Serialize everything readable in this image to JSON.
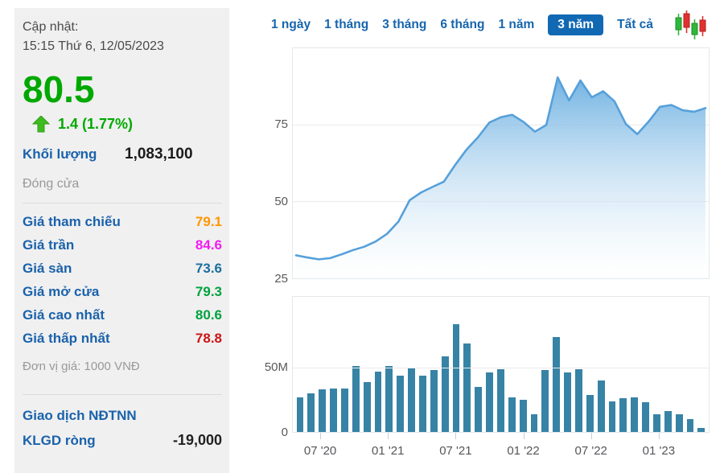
{
  "left_panel": {
    "updated_label": "Cập nhật:",
    "updated_time": "15:15 Thứ 6, 12/05/2023",
    "last_price": "80.5",
    "change_text": "1.4 (1.77%)",
    "change_direction": "up",
    "volume_label": "Khối lượng",
    "volume_value": "1,083,100",
    "close_label": "Đóng cửa",
    "price_rows": [
      {
        "label": "Giá tham chiếu",
        "value": "79.1",
        "color": "#ff9500"
      },
      {
        "label": "Giá trần",
        "value": "84.6",
        "color": "#f01cf0"
      },
      {
        "label": "Giá sàn",
        "value": "73.6",
        "color": "#1b6f9e"
      },
      {
        "label": "Giá mở cửa",
        "value": "79.3",
        "color": "#00a23f"
      },
      {
        "label": "Giá cao nhất",
        "value": "80.6",
        "color": "#00a23f"
      },
      {
        "label": "Giá thấp nhất",
        "value": "78.8",
        "color": "#cc1414"
      }
    ],
    "unit_note": "Đơn vị giá: 1000 VNĐ",
    "foreign_header": "Giao dịch NĐTNN",
    "net_volume_label": "KLGD ròng",
    "net_volume_value": "-19,000"
  },
  "tabs": {
    "items": [
      "1 ngày",
      "1 tháng",
      "3 tháng",
      "6 tháng",
      "1 năm",
      "3 năm",
      "Tất cả"
    ],
    "active": "3 năm",
    "active_bg": "#1169b3",
    "link_color": "#1665ad",
    "chart_type_icon": "candlestick"
  },
  "icons": {
    "change_arrow": "up-arrow",
    "arrow_color": "#3fbb1f",
    "candle_up_color": "#2eb83a",
    "candle_down_color": "#e03131"
  },
  "chart_data": [
    {
      "type": "area",
      "name": "price-history-3y",
      "unit": "1000 VND",
      "x": [
        "05/20",
        "06/20",
        "07/20",
        "08/20",
        "09/20",
        "10/20",
        "11/20",
        "12/20",
        "01/21",
        "02/21",
        "03/21",
        "04/21",
        "05/21",
        "06/21",
        "07/21",
        "08/21",
        "09/21",
        "10/21",
        "11/21",
        "12/21",
        "01/22",
        "02/22",
        "03/22",
        "04/22",
        "05/22",
        "06/22",
        "07/22",
        "08/22",
        "09/22",
        "10/22",
        "11/22",
        "12/22",
        "01/23",
        "02/23",
        "03/23",
        "04/23",
        "05/23"
      ],
      "values": [
        32.5,
        31.8,
        31.2,
        31.6,
        32.8,
        34.2,
        35.3,
        37.0,
        39.5,
        43.5,
        50.5,
        53.0,
        54.8,
        56.5,
        62.0,
        67.0,
        71.0,
        75.8,
        77.5,
        78.3,
        76.0,
        72.8,
        75.0,
        90.5,
        83.0,
        89.5,
        84.0,
        86.0,
        82.7,
        75.3,
        72.0,
        76.1,
        80.9,
        81.5,
        79.8,
        79.3,
        80.5
      ],
      "ylim": [
        25,
        100
      ],
      "yticks": [
        {
          "label": "75",
          "value": 75
        },
        {
          "label": "50",
          "value": 50
        },
        {
          "label": "25",
          "value": 25
        }
      ],
      "grid": true,
      "line_color": "#56a0da",
      "fill_top_color": "#5ea8de",
      "fill_bottom_color": "#ffffff",
      "legend": "none"
    },
    {
      "type": "bar",
      "name": "volume-history-3y",
      "unit": "shares (millions)",
      "x": [
        "05/20",
        "06/20",
        "07/20",
        "08/20",
        "09/20",
        "10/20",
        "11/20",
        "12/20",
        "01/21",
        "02/21",
        "03/21",
        "04/21",
        "05/21",
        "06/21",
        "07/21",
        "08/21",
        "09/21",
        "10/21",
        "11/21",
        "12/21",
        "01/22",
        "02/22",
        "03/22",
        "04/22",
        "05/22",
        "06/22",
        "07/22",
        "08/22",
        "09/22",
        "10/22",
        "11/22",
        "12/22",
        "01/23",
        "02/23",
        "03/23",
        "04/23",
        "05/23"
      ],
      "values_millions": [
        27,
        30,
        33,
        34,
        34,
        51,
        39,
        47,
        51,
        44,
        50,
        44,
        48,
        59,
        84,
        69,
        35,
        46,
        49,
        27,
        25,
        14,
        48,
        74,
        46,
        49,
        29,
        40,
        24,
        26,
        27,
        23,
        14,
        16,
        14,
        10,
        3
      ],
      "ylim": [
        0,
        105
      ],
      "yticks": [
        {
          "label": "50M",
          "value": 50
        },
        {
          "label": "0",
          "value": 0
        }
      ],
      "grid": true,
      "bar_color": "#3783a5",
      "xticks": [
        {
          "label": "07 '20",
          "index": 2
        },
        {
          "label": "01 '21",
          "index": 8
        },
        {
          "label": "07 '21",
          "index": 14
        },
        {
          "label": "01 '22",
          "index": 20
        },
        {
          "label": "07 '22",
          "index": 26
        },
        {
          "label": "01 '23",
          "index": 32
        }
      ],
      "legend": "none"
    }
  ]
}
